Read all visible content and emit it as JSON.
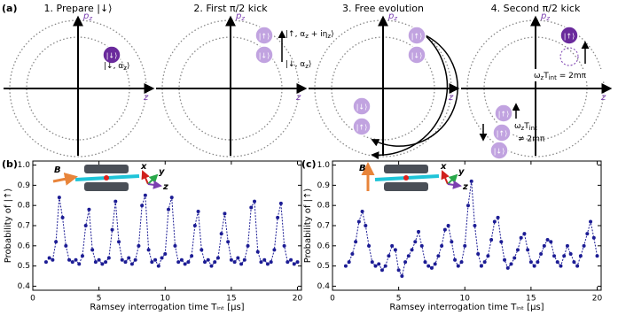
{
  "panel_a": {
    "label": "(a)",
    "titles": [
      "1. Prepare |↓⟩",
      "2. First π/2 kick",
      "3. Free evolution",
      "4. Second π/2 kick"
    ],
    "axis_p": [
      "p",
      "z"
    ],
    "axis_z": "z",
    "states": {
      "down": "|↓⟩",
      "up": "|↑⟩"
    },
    "down_alpha": [
      "|↓, α",
      "z",
      "⟩"
    ],
    "up_alpha": [
      "|↑, α",
      "z",
      " + iη",
      "z",
      "⟩"
    ],
    "resonant": [
      "ω",
      "z",
      "T",
      "int",
      " = 2mπ"
    ],
    "off_resonant": [
      "ω",
      "z",
      "T",
      "int",
      "≠ 2mπ"
    ]
  },
  "chart_data": [
    {
      "type": "line",
      "panel_label": "(b)",
      "ylabel": "Probability of |↑⟩",
      "xlabel": "Ramsey interrogation time Tᵢₙₜ [μs]",
      "inset_labels": {
        "B": "B",
        "x": "x",
        "y": "y",
        "z": "z"
      },
      "xlim": [
        0,
        20.3
      ],
      "ylim": [
        0.38,
        1.02
      ],
      "xticks": [
        0,
        5,
        10,
        15,
        20
      ],
      "yticks": [
        0.4,
        0.5,
        0.6,
        0.7,
        0.8,
        0.9,
        {
          "value": 1,
          "label": "1.0"
        }
      ],
      "x": [
        1.0,
        1.25,
        1.5,
        1.75,
        2.0,
        2.25,
        2.5,
        2.75,
        3.0,
        3.25,
        3.5,
        3.75,
        4.0,
        4.25,
        4.5,
        4.75,
        5.0,
        5.25,
        5.5,
        5.75,
        6.0,
        6.25,
        6.5,
        6.75,
        7.0,
        7.25,
        7.5,
        7.75,
        8.0,
        8.25,
        8.5,
        8.75,
        9.0,
        9.25,
        9.5,
        9.75,
        10.0,
        10.25,
        10.5,
        10.75,
        11.0,
        11.25,
        11.5,
        11.75,
        12.0,
        12.25,
        12.5,
        12.75,
        13.0,
        13.25,
        13.5,
        13.75,
        14.0,
        14.25,
        14.5,
        14.75,
        15.0,
        15.25,
        15.5,
        15.75,
        16.0,
        16.25,
        16.5,
        16.75,
        17.0,
        17.25,
        17.5,
        17.75,
        18.0,
        18.25,
        18.5,
        18.75,
        19.0,
        19.25,
        19.5,
        19.75,
        20.0
      ],
      "series": [
        {
          "color": "#1c1c94",
          "values": [
            0.52,
            0.54,
            0.53,
            0.62,
            0.84,
            0.74,
            0.6,
            0.53,
            0.52,
            0.53,
            0.51,
            0.55,
            0.7,
            0.78,
            0.58,
            0.52,
            0.53,
            0.51,
            0.52,
            0.54,
            0.68,
            0.82,
            0.62,
            0.53,
            0.52,
            0.54,
            0.51,
            0.53,
            0.6,
            0.8,
            0.85,
            0.58,
            0.52,
            0.53,
            0.5,
            0.54,
            0.56,
            0.78,
            0.84,
            0.6,
            0.52,
            0.53,
            0.51,
            0.52,
            0.55,
            0.7,
            0.77,
            0.58,
            0.52,
            0.53,
            0.5,
            0.52,
            0.54,
            0.66,
            0.76,
            0.62,
            0.53,
            0.52,
            0.54,
            0.51,
            0.53,
            0.6,
            0.79,
            0.82,
            0.57,
            0.52,
            0.53,
            0.51,
            0.52,
            0.58,
            0.74,
            0.81,
            0.6,
            0.52,
            0.53,
            0.51,
            0.52
          ]
        }
      ]
    },
    {
      "type": "line",
      "panel_label": "(c)",
      "ylabel": "Probability of |↑⟩",
      "xlabel": "Ramsey interrogation time Tᵢₙₜ [μs]",
      "inset_labels": {
        "B": "B",
        "x": "x",
        "y": "y",
        "z": "z"
      },
      "xlim": [
        0,
        20.3
      ],
      "ylim": [
        0.38,
        1.02
      ],
      "xticks": [
        0,
        5,
        10,
        15,
        20
      ],
      "yticks": [
        0.4,
        0.5,
        0.6,
        0.7,
        0.8,
        0.9,
        {
          "value": 1,
          "label": "1.0"
        }
      ],
      "x": [
        1.0,
        1.25,
        1.5,
        1.75,
        2.0,
        2.25,
        2.5,
        2.75,
        3.0,
        3.25,
        3.5,
        3.75,
        4.0,
        4.25,
        4.5,
        4.75,
        5.0,
        5.25,
        5.5,
        5.75,
        6.0,
        6.25,
        6.5,
        6.75,
        7.0,
        7.25,
        7.5,
        7.75,
        8.0,
        8.25,
        8.5,
        8.75,
        9.0,
        9.25,
        9.5,
        9.75,
        10.0,
        10.25,
        10.5,
        10.75,
        11.0,
        11.25,
        11.5,
        11.75,
        12.0,
        12.25,
        12.5,
        12.75,
        13.0,
        13.25,
        13.5,
        13.75,
        14.0,
        14.25,
        14.5,
        14.75,
        15.0,
        15.25,
        15.5,
        15.75,
        16.0,
        16.25,
        16.5,
        16.75,
        17.0,
        17.25,
        17.5,
        17.75,
        18.0,
        18.25,
        18.5,
        18.75,
        19.0,
        19.25,
        19.5,
        19.75,
        20.0
      ],
      "series": [
        {
          "color": "#1c1c94",
          "values": [
            0.5,
            0.52,
            0.56,
            0.62,
            0.72,
            0.77,
            0.7,
            0.6,
            0.52,
            0.5,
            0.51,
            0.48,
            0.5,
            0.55,
            0.6,
            0.58,
            0.48,
            0.45,
            0.52,
            0.55,
            0.58,
            0.62,
            0.67,
            0.6,
            0.52,
            0.5,
            0.49,
            0.51,
            0.55,
            0.6,
            0.68,
            0.7,
            0.62,
            0.53,
            0.5,
            0.52,
            0.6,
            0.8,
            0.92,
            0.7,
            0.56,
            0.5,
            0.52,
            0.55,
            0.63,
            0.72,
            0.74,
            0.62,
            0.53,
            0.49,
            0.51,
            0.54,
            0.58,
            0.64,
            0.66,
            0.58,
            0.52,
            0.5,
            0.52,
            0.56,
            0.6,
            0.63,
            0.62,
            0.55,
            0.52,
            0.5,
            0.55,
            0.6,
            0.56,
            0.52,
            0.5,
            0.55,
            0.6,
            0.66,
            0.72,
            0.64,
            0.55
          ]
        }
      ]
    }
  ]
}
